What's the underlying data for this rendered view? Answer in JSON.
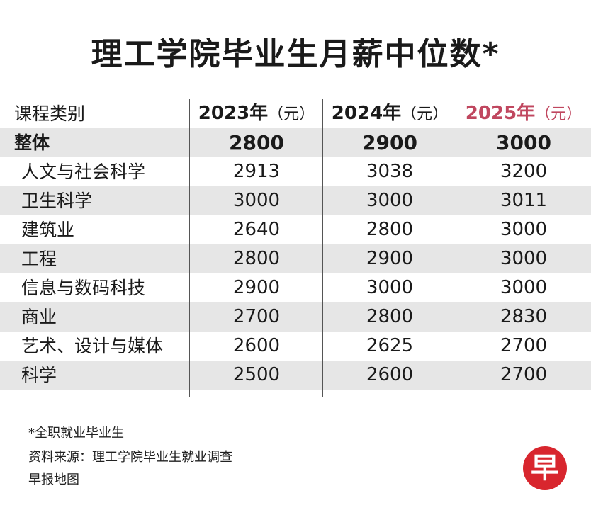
{
  "title": "理工学院毕业生月薪中位数*",
  "header": {
    "category": "课程类别",
    "years": [
      {
        "year": "2023年",
        "unit": "（元）"
      },
      {
        "year": "2024年",
        "unit": "（元）"
      },
      {
        "year": "2025年",
        "unit": "（元）"
      }
    ]
  },
  "rows": [
    {
      "name": "整体",
      "values": [
        "2800",
        "2900",
        "3000"
      ]
    },
    {
      "name": "人文与社会科学",
      "values": [
        "2913",
        "3038",
        "3200"
      ]
    },
    {
      "name": "卫生科学",
      "values": [
        "3000",
        "3000",
        "3011"
      ]
    },
    {
      "name": "建筑业",
      "values": [
        "2640",
        "2800",
        "3000"
      ]
    },
    {
      "name": "工程",
      "values": [
        "2800",
        "2900",
        "3000"
      ]
    },
    {
      "name": "信息与数码科技",
      "values": [
        "2900",
        "3000",
        "3000"
      ]
    },
    {
      "name": "商业",
      "values": [
        "2700",
        "2800",
        "2830"
      ]
    },
    {
      "name": "艺术、设计与媒体",
      "values": [
        "2600",
        "2625",
        "2700"
      ]
    },
    {
      "name": "科学",
      "values": [
        "2500",
        "2600",
        "2700"
      ]
    }
  ],
  "footnotes": {
    "note": "*全职就业毕业生",
    "source": "资料来源：理工学院毕业生就业调查",
    "credit": "早报地图"
  },
  "logo": {
    "text": "早",
    "color": "#d8262e"
  },
  "colors": {
    "highlight_year": "#c0475f",
    "shaded_row": "#e6e6e6"
  },
  "chart_data": {
    "type": "table",
    "title": "理工学院毕业生月薪中位数*",
    "columns": [
      "课程类别",
      "2023年（元）",
      "2024年（元）",
      "2025年（元）"
    ],
    "rows": [
      [
        "整体",
        2800,
        2900,
        3000
      ],
      [
        "人文与社会科学",
        2913,
        3038,
        3200
      ],
      [
        "卫生科学",
        3000,
        3000,
        3011
      ],
      [
        "建筑业",
        2640,
        2800,
        3000
      ],
      [
        "工程",
        2800,
        2900,
        3000
      ],
      [
        "信息与数码科技",
        2900,
        3000,
        3000
      ],
      [
        "商业",
        2700,
        2800,
        2830
      ],
      [
        "艺术、设计与媒体",
        2600,
        2625,
        2700
      ],
      [
        "科学",
        2500,
        2600,
        2700
      ]
    ]
  }
}
